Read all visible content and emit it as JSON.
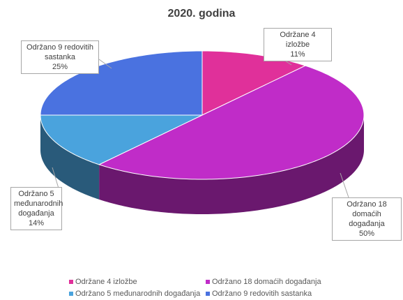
{
  "chart_data": {
    "type": "pie",
    "title": "2020. godina",
    "categories": [
      "Održane 4 izložbe",
      "Održano 18 domaćih događanja",
      "Održano 5 međunarodnih događanja",
      "Održano 9 redovitih sastanka"
    ],
    "values": [
      11,
      50,
      14,
      25
    ],
    "value_labels": [
      "11%",
      "50%",
      "14%",
      "25%"
    ],
    "colors": [
      "#e0309a",
      "#c02cc8",
      "#4aa3dd",
      "#4a72e0"
    ],
    "legend": "bottom"
  }
}
